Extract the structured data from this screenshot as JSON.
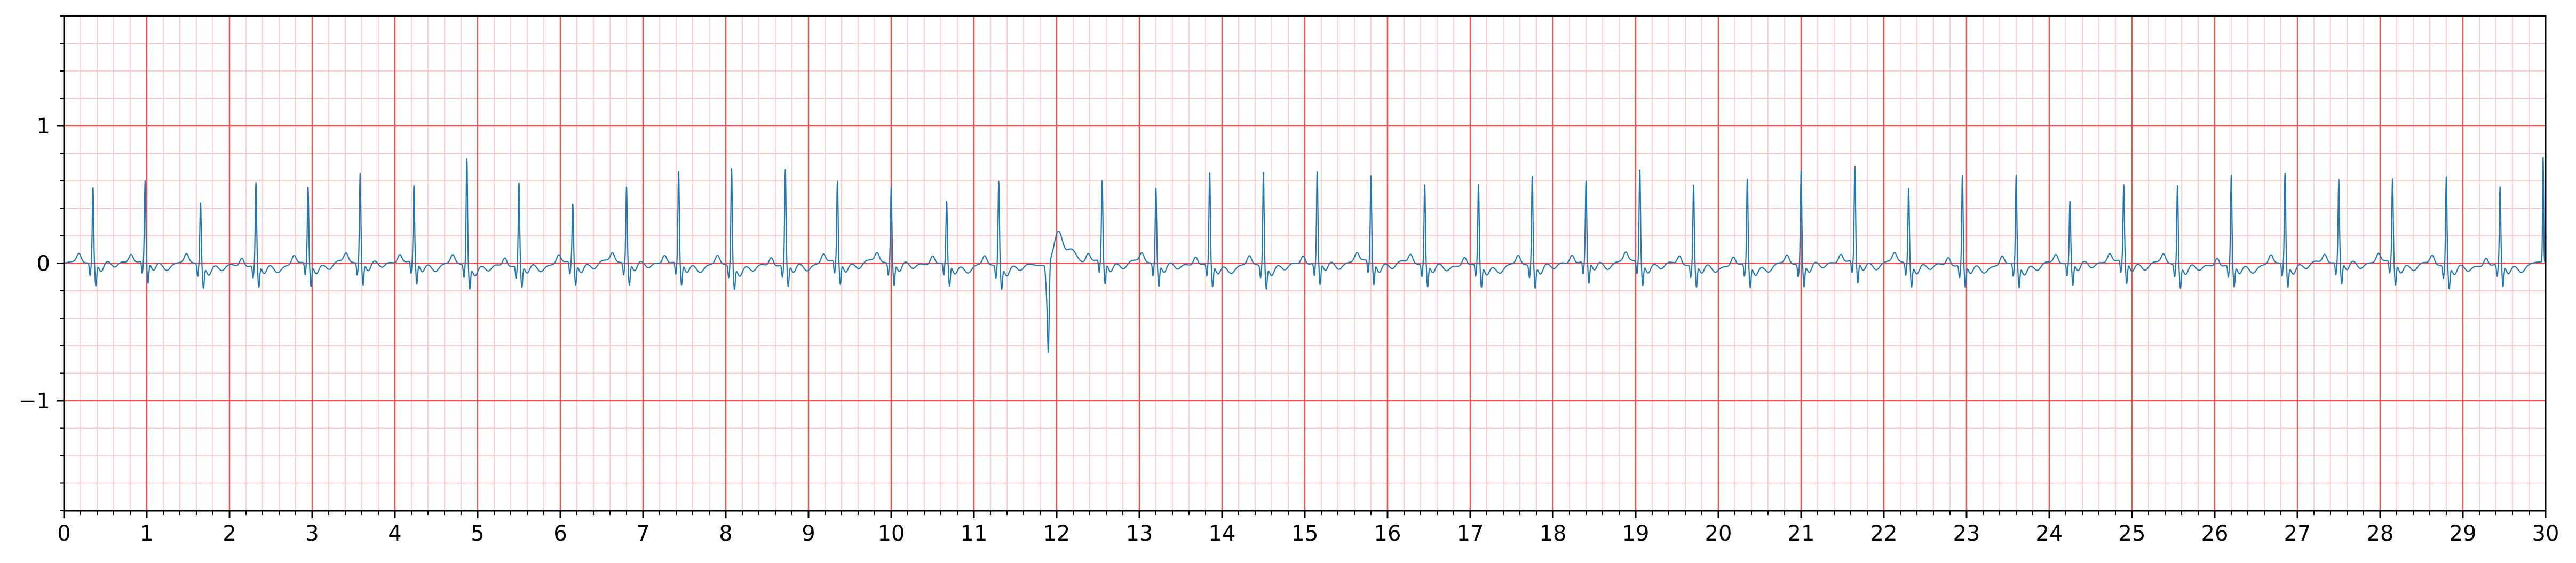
{
  "chart_data": {
    "type": "line",
    "title": "",
    "xlabel": "",
    "ylabel": "",
    "xlim": [
      0,
      30
    ],
    "ylim": [
      -1.8,
      1.8
    ],
    "x_ticks": [
      0,
      1,
      2,
      3,
      4,
      5,
      6,
      7,
      8,
      9,
      10,
      11,
      12,
      13,
      14,
      15,
      16,
      17,
      18,
      19,
      20,
      21,
      22,
      23,
      24,
      25,
      26,
      27,
      28,
      29,
      30
    ],
    "x_tick_labels": [
      "0",
      "1",
      "2",
      "3",
      "4",
      "5",
      "6",
      "7",
      "8",
      "9",
      "10",
      "11",
      "12",
      "13",
      "14",
      "15",
      "16",
      "17",
      "18",
      "19",
      "20",
      "21",
      "22",
      "23",
      "24",
      "25",
      "26",
      "27",
      "28",
      "29",
      "30"
    ],
    "y_ticks": [
      -1,
      0,
      1
    ],
    "y_tick_labels": [
      "−1",
      "0",
      "1"
    ],
    "grid": {
      "major_x_step": 1,
      "major_y_step": 1,
      "minor_step": 0.2,
      "major_color": "#f05050",
      "minor_color": "#ffc0c0"
    },
    "line_color": "#1f77b4",
    "series": [
      {
        "type": "beats",
        "x": [
          0.35,
          0.98,
          1.65,
          2.32,
          2.95,
          3.58,
          4.23,
          4.87,
          5.5,
          6.15,
          6.8,
          7.43,
          8.07,
          8.72,
          9.35,
          10.0,
          10.67,
          11.3,
          12.55,
          13.2,
          13.85,
          14.5,
          15.15,
          15.8,
          16.45,
          17.1,
          17.75,
          18.4,
          19.05,
          19.7,
          20.35,
          21.0,
          21.65,
          22.3,
          22.95,
          23.6,
          24.25,
          24.9,
          25.55,
          26.2,
          26.85,
          27.5,
          28.15,
          28.8,
          29.45
        ],
        "peak": [
          0.55,
          0.58,
          0.45,
          0.6,
          0.55,
          0.65,
          0.55,
          0.78,
          0.6,
          0.42,
          0.55,
          0.66,
          0.71,
          0.69,
          0.58,
          0.55,
          0.45,
          0.62,
          0.58,
          0.55,
          0.66,
          0.68,
          0.66,
          0.62,
          0.58,
          0.58,
          0.65,
          0.58,
          0.67,
          0.58,
          0.62,
          0.68,
          0.68,
          0.55,
          0.65,
          0.65,
          0.45,
          0.55,
          0.58,
          0.65,
          0.66,
          0.6,
          0.6,
          0.65,
          0.56
        ],
        "events": [
          {
            "type": "pvc",
            "x": 11.9,
            "nadir": -0.8,
            "after": 0.22
          }
        ],
        "end_spike": {
          "x": 29.97,
          "peak": 0.76
        }
      }
    ]
  }
}
